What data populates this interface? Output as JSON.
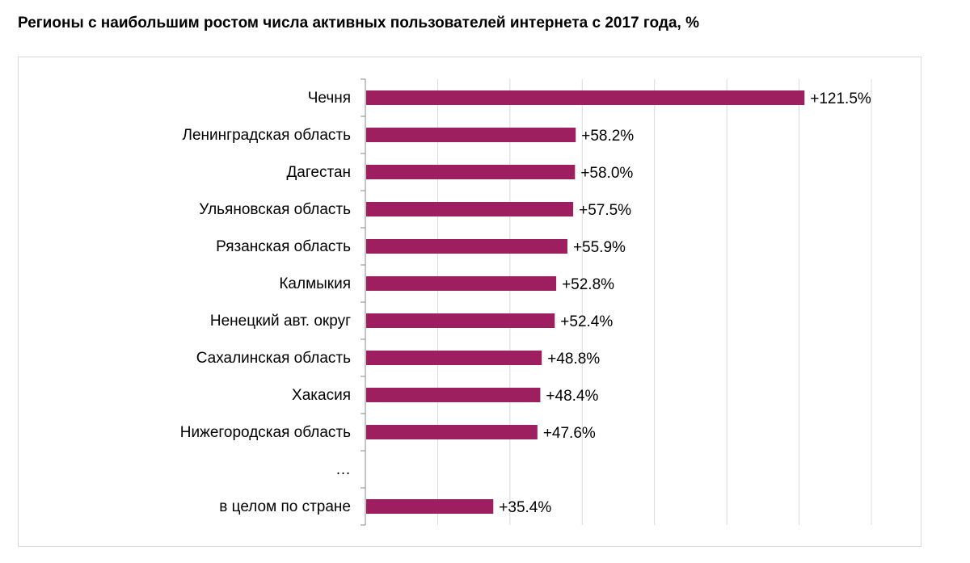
{
  "chart_data": {
    "type": "bar",
    "orientation": "horizontal",
    "title": "Регионы с наибольшим ростом числа активных пользователей интернета с 2017 года, %",
    "categories": [
      "Чечня",
      "Ленинградская область",
      "Дагестан",
      "Ульяновская область",
      "Рязанская область",
      "Калмыкия",
      "Ненецкий авт. округ",
      "Сахалинская область",
      "Хакасия",
      "Нижегородская область",
      "…",
      "в целом по стране"
    ],
    "values": [
      121.5,
      58.2,
      58.0,
      57.5,
      55.9,
      52.8,
      52.4,
      48.8,
      48.4,
      47.6,
      null,
      35.4
    ],
    "labels": [
      "+121.5%",
      "+58.2%",
      "+58.0%",
      "+57.5%",
      "+55.9%",
      "+52.8%",
      "+52.4%",
      "+48.8%",
      "+48.4%",
      "+47.6%",
      "",
      "+35.4%"
    ],
    "xlim": [
      0,
      140
    ],
    "grid_step": 20,
    "grid": true,
    "xlabel": "",
    "ylabel": "",
    "bar_color": "#9e1f5f"
  }
}
